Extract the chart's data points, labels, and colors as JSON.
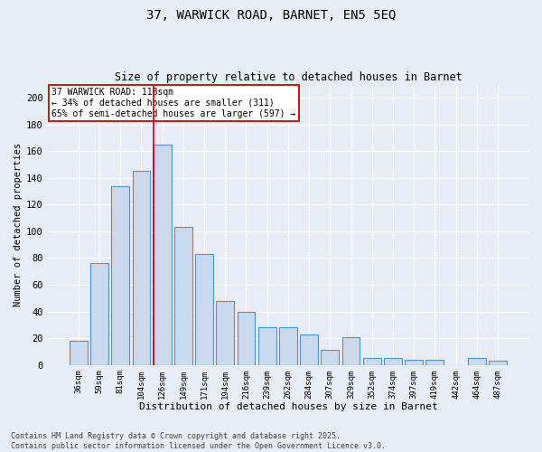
{
  "title_line1": "37, WARWICK ROAD, BARNET, EN5 5EQ",
  "title_line2": "Size of property relative to detached houses in Barnet",
  "xlabel": "Distribution of detached houses by size in Barnet",
  "ylabel": "Number of detached properties",
  "categories": [
    "36sqm",
    "59sqm",
    "81sqm",
    "104sqm",
    "126sqm",
    "149sqm",
    "171sqm",
    "194sqm",
    "216sqm",
    "239sqm",
    "262sqm",
    "284sqm",
    "307sqm",
    "329sqm",
    "352sqm",
    "374sqm",
    "397sqm",
    "419sqm",
    "442sqm",
    "464sqm",
    "487sqm"
  ],
  "values": [
    18,
    76,
    134,
    145,
    165,
    103,
    83,
    48,
    40,
    28,
    28,
    23,
    11,
    21,
    5,
    5,
    4,
    4,
    0,
    5,
    3
  ],
  "bar_color": "#c9d9f0",
  "bar_edge_color": "#5a8fc7",
  "background_color": "#e8edf5",
  "grid_color": "#ffffff",
  "vline_color": "#cc0000",
  "vline_x_index": 3.57,
  "annotation_text": "37 WARWICK ROAD: 118sqm\n← 34% of detached houses are smaller (311)\n65% of semi-detached houses are larger (597) →",
  "annotation_box_color": "#ffffff",
  "annotation_box_edge": "#cc0000",
  "footnote": "Contains HM Land Registry data © Crown copyright and database right 2025.\nContains public sector information licensed under the Open Government Licence v3.0.",
  "ylim": [
    0,
    210
  ],
  "yticks": [
    0,
    20,
    40,
    60,
    80,
    100,
    120,
    140,
    160,
    180,
    200
  ]
}
